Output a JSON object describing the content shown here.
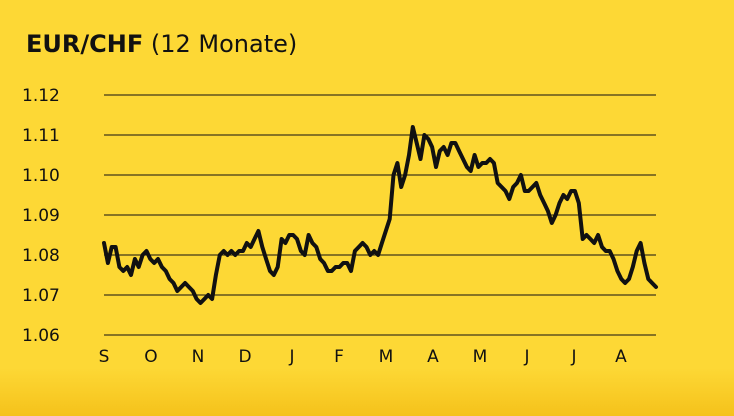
{
  "title": {
    "main": "EUR/CHF",
    "sub": "(12 Monate)"
  },
  "colors": {
    "background": "#fdd835",
    "line": "#111111",
    "grid": "#111111"
  },
  "chart_data": {
    "type": "line",
    "title": "EUR/CHF (12 Monate)",
    "xlabel": "",
    "ylabel": "",
    "grid": true,
    "ylim": [
      1.06,
      1.12
    ],
    "yticks": [
      1.12,
      1.11,
      1.1,
      1.09,
      1.08,
      1.07,
      1.06
    ],
    "ytick_labels": [
      "1.12",
      "1.11",
      "1.10",
      "1.09",
      "1.08",
      "1.07",
      "1.06"
    ],
    "xticks": [
      "S",
      "O",
      "N",
      "D",
      "J",
      "F",
      "M",
      "A",
      "M",
      "J",
      "J",
      "A"
    ],
    "series": [
      {
        "values": [
          1.083,
          1.078,
          1.082,
          1.082,
          1.077,
          1.076,
          1.077,
          1.075,
          1.079,
          1.077,
          1.08,
          1.081,
          1.079,
          1.078,
          1.079,
          1.077,
          1.076,
          1.074,
          1.073,
          1.071,
          1.072,
          1.073,
          1.072,
          1.071,
          1.069,
          1.068,
          1.069,
          1.07,
          1.069,
          1.075,
          1.08,
          1.081,
          1.08,
          1.081,
          1.08,
          1.081,
          1.081,
          1.083,
          1.082,
          1.084,
          1.086,
          1.082,
          1.079,
          1.076,
          1.075,
          1.077,
          1.084,
          1.083,
          1.085,
          1.085,
          1.084,
          1.081,
          1.08,
          1.085,
          1.083,
          1.082,
          1.079,
          1.078,
          1.076,
          1.076,
          1.077,
          1.077,
          1.078,
          1.078,
          1.076,
          1.081,
          1.082,
          1.083,
          1.082,
          1.08,
          1.081,
          1.08,
          1.083,
          1.086,
          1.089,
          1.1,
          1.103,
          1.097,
          1.1,
          1.105,
          1.112,
          1.108,
          1.104,
          1.11,
          1.109,
          1.107,
          1.102,
          1.106,
          1.107,
          1.105,
          1.108,
          1.108,
          1.106,
          1.104,
          1.102,
          1.101,
          1.105,
          1.102,
          1.103,
          1.103,
          1.104,
          1.103,
          1.098,
          1.097,
          1.096,
          1.094,
          1.097,
          1.098,
          1.1,
          1.096,
          1.096,
          1.097,
          1.098,
          1.095,
          1.093,
          1.091,
          1.088,
          1.09,
          1.093,
          1.095,
          1.094,
          1.096,
          1.096,
          1.093,
          1.084,
          1.085,
          1.084,
          1.083,
          1.085,
          1.082,
          1.081,
          1.081,
          1.079,
          1.076,
          1.074,
          1.073,
          1.074,
          1.077,
          1.081,
          1.083,
          1.078,
          1.074,
          1.073,
          1.072
        ]
      }
    ]
  }
}
